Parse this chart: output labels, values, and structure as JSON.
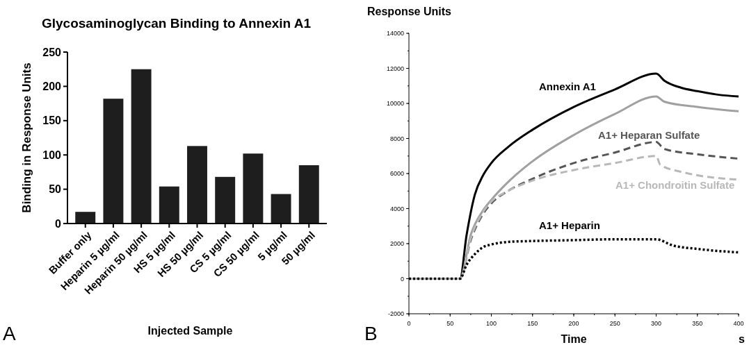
{
  "chart_data": [
    {
      "type": "bar",
      "title": "Glycosaminoglycan Binding to Annexin A1",
      "xlabel": "Injected Sample",
      "ylabel": "Binding in Response Units",
      "categories": [
        "Buffer only",
        "Heparin 5 µg/ml",
        "Heparin 50 µg/ml",
        "HS 5 µg/ml",
        "HS 50 µg/ml",
        "CS 5 µg/ml",
        "CS 50 µg/ml",
        "5 µg/ml",
        "50 µg/ml"
      ],
      "values": [
        17,
        182,
        225,
        54,
        113,
        68,
        102,
        43,
        85
      ],
      "color": "#1e1e1e",
      "ylim": [
        0,
        250
      ],
      "yticks": [
        0,
        50,
        100,
        150,
        200,
        250
      ],
      "grid": false,
      "annotations": [
        "A"
      ]
    },
    {
      "type": "line",
      "xlabel": "Time",
      "ylabel": "Response Units",
      "xlim": [
        0,
        400
      ],
      "xticks": [
        0,
        50,
        100,
        150,
        200,
        250,
        300,
        350,
        400
      ],
      "ylim": [
        -2000,
        14000
      ],
      "yticks": [
        -2000,
        0,
        2000,
        4000,
        6000,
        8000,
        10000,
        12000,
        14000
      ],
      "grid": false,
      "annotations": [
        "B",
        "s"
      ],
      "series": [
        {
          "name": "Annexin A1",
          "color": "#000000",
          "line_style": "solid",
          "x": [
            0,
            62,
            70,
            80,
            90,
            100,
            120,
            150,
            200,
            250,
            300,
            310,
            330,
            350,
            375,
            400
          ],
          "values": [
            0,
            0,
            2500,
            4800,
            5900,
            6600,
            7500,
            8500,
            9800,
            10800,
            11700,
            11300,
            10900,
            10700,
            10500,
            10400
          ]
        },
        {
          "color": "#a0a0a0",
          "line_style": "solid",
          "x": [
            0,
            62,
            75,
            90,
            100,
            120,
            150,
            200,
            250,
            300,
            310,
            350,
            400
          ],
          "values": [
            0,
            0,
            2500,
            3900,
            4500,
            5500,
            6700,
            8200,
            9400,
            10400,
            10100,
            9800,
            9550
          ]
        },
        {
          "name": "A1+ Heparan Sulfate",
          "color": "#555555",
          "line_style": "dashed",
          "x": [
            0,
            62,
            75,
            90,
            100,
            120,
            150,
            200,
            250,
            300,
            310,
            350,
            400
          ],
          "values": [
            0,
            0,
            2200,
            3700,
            4300,
            5000,
            5700,
            6600,
            7200,
            7800,
            7400,
            7100,
            6850
          ]
        },
        {
          "name": "A1+ Chondroitin Sulfate",
          "color": "#b8b8b8",
          "line_style": "dashed",
          "x": [
            0,
            62,
            75,
            90,
            100,
            120,
            150,
            200,
            250,
            300,
            305,
            330,
            350,
            400
          ],
          "values": [
            0,
            0,
            2300,
            3800,
            4400,
            5000,
            5600,
            6200,
            6600,
            7000,
            6500,
            6100,
            5900,
            5650
          ]
        },
        {
          "name": "A1+ Heparin",
          "color": "#000000",
          "line_style": "dotted",
          "x": [
            0,
            62,
            70,
            80,
            90,
            100,
            120,
            150,
            200,
            250,
            300,
            320,
            350,
            400
          ],
          "values": [
            0,
            0,
            800,
            1400,
            1800,
            1950,
            2100,
            2150,
            2200,
            2250,
            2250,
            1900,
            1700,
            1500
          ]
        }
      ]
    }
  ]
}
